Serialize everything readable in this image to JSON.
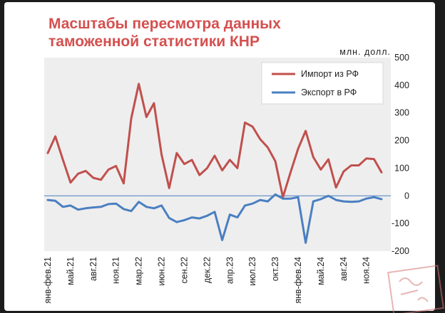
{
  "chart_data": {
    "type": "line",
    "title_lines": [
      "Масштабы пересмотра данных",
      "таможенной статистики КНР"
    ],
    "unit_label": "млн. долл.",
    "ylim": [
      -200,
      500
    ],
    "y_ticks": [
      500,
      400,
      300,
      200,
      100,
      0,
      -100,
      -200
    ],
    "y_axis_position": "right",
    "grid": false,
    "legend_placement": "top-right",
    "x_tick_labels": [
      {
        "index": 0,
        "label": "янв-фев.21"
      },
      {
        "index": 3,
        "label": "май.21"
      },
      {
        "index": 6,
        "label": "авг.21"
      },
      {
        "index": 9,
        "label": "ноя.21"
      },
      {
        "index": 12,
        "label": "мар.22"
      },
      {
        "index": 15,
        "label": "июн.22"
      },
      {
        "index": 18,
        "label": "сен.22"
      },
      {
        "index": 21,
        "label": "дек.22"
      },
      {
        "index": 24,
        "label": "апр.23"
      },
      {
        "index": 27,
        "label": "июл.23"
      },
      {
        "index": 30,
        "label": "окт.23"
      },
      {
        "index": 33,
        "label": "янв-фев.24"
      },
      {
        "index": 36,
        "label": "май.24"
      },
      {
        "index": 39,
        "label": "авг.24"
      },
      {
        "index": 42,
        "label": "ноя.24"
      }
    ],
    "series": [
      {
        "name": "Импорт из РФ",
        "color": "#c0504d",
        "values": [
          155,
          215,
          130,
          48,
          80,
          90,
          65,
          58,
          95,
          108,
          45,
          280,
          405,
          285,
          335,
          150,
          28,
          155,
          115,
          130,
          75,
          100,
          145,
          92,
          130,
          100,
          265,
          250,
          205,
          175,
          125,
          -5,
          85,
          170,
          235,
          140,
          95,
          132,
          30,
          88,
          110,
          110,
          135,
          133,
          85
        ]
      },
      {
        "name": "Экспорт в РФ",
        "color": "#4a7fc1",
        "values": [
          -15,
          -18,
          -40,
          -35,
          -50,
          -45,
          -42,
          -40,
          -30,
          -28,
          -48,
          -55,
          -22,
          -40,
          -45,
          -35,
          -80,
          -95,
          -88,
          -78,
          -82,
          -72,
          -58,
          -160,
          -68,
          -78,
          -35,
          -28,
          -15,
          -20,
          5,
          -10,
          -10,
          -5,
          -170,
          -20,
          -12,
          0,
          -15,
          -20,
          -22,
          -20,
          -10,
          -5,
          -12
        ]
      }
    ]
  },
  "watermark": "стамп"
}
